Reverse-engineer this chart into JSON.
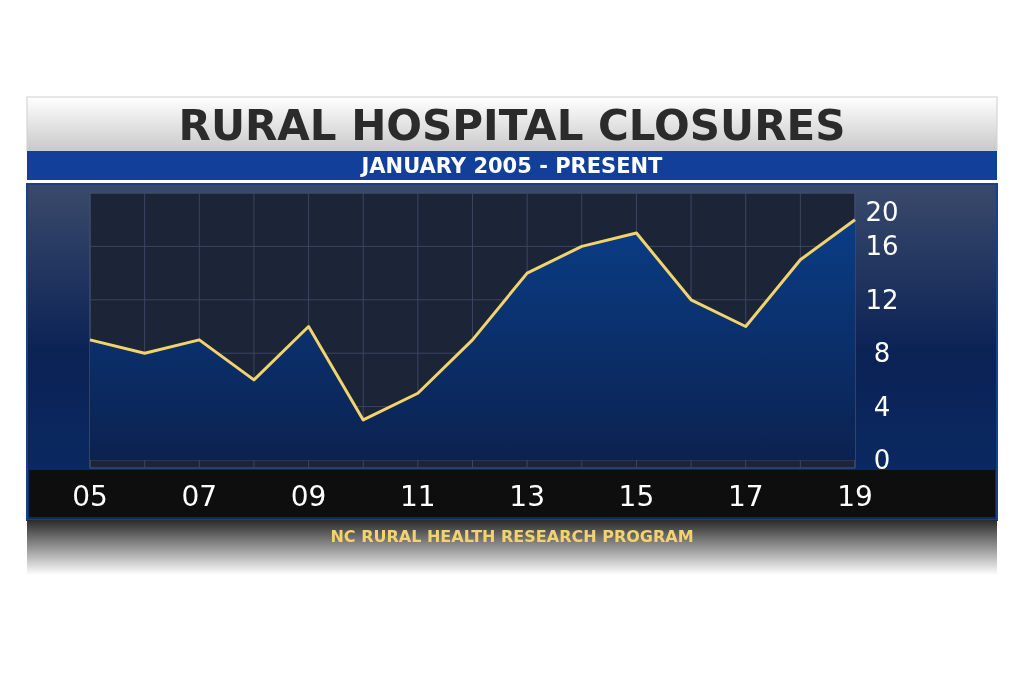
{
  "chart_data": {
    "type": "area",
    "title": "RURAL HOSPITAL CLOSURES",
    "subtitle": "JANUARY 2005 - PRESENT",
    "annotations": [
      "NC RURAL HEALTH RESEARCH PROGRAM"
    ],
    "x": [
      2005,
      2006,
      2007,
      2008,
      2009,
      2010,
      2011,
      2012,
      2013,
      2014,
      2015,
      2016,
      2017,
      2018,
      2019
    ],
    "series": [
      {
        "color": "#f3d36b",
        "values": [
          9,
          8,
          9,
          6,
          10,
          3,
          5,
          9,
          14,
          16,
          17,
          12,
          10,
          15,
          18
        ]
      }
    ],
    "xlim": [
      2005,
      2019
    ],
    "xticks": [
      {
        "value": 2005,
        "label": "05"
      },
      {
        "value": 2007,
        "label": "07"
      },
      {
        "value": 2009,
        "label": "09"
      },
      {
        "value": 2011,
        "label": "11"
      },
      {
        "value": 2013,
        "label": "13"
      },
      {
        "value": 2015,
        "label": "15"
      },
      {
        "value": 2017,
        "label": "17"
      },
      {
        "value": 2019,
        "label": "19"
      }
    ],
    "ylim": [
      0,
      20
    ],
    "yticks": [
      0,
      4,
      8,
      12,
      16,
      20
    ],
    "grid": true
  }
}
